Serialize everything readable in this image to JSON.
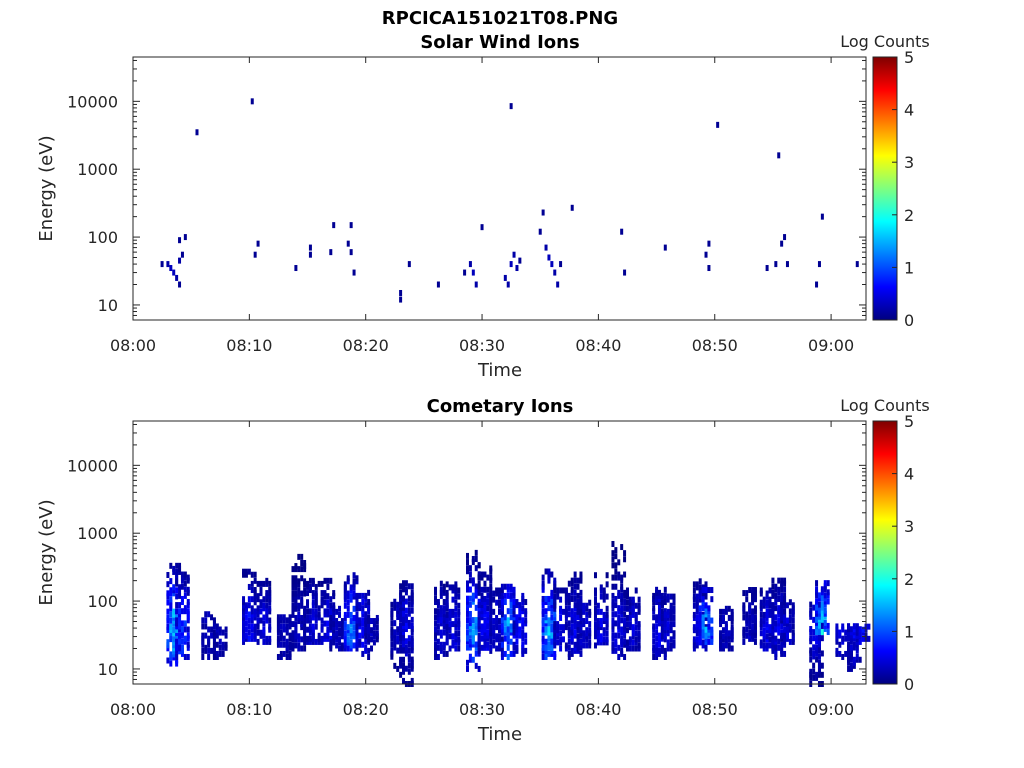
{
  "figure": {
    "title": "RPCICA151021T08.PNG"
  },
  "colors": {
    "colormap": [
      "#00007f",
      "#0000ff",
      "#007fff",
      "#00ffff",
      "#7fff7f",
      "#ffff00",
      "#ff7f00",
      "#ff0000",
      "#7f0000"
    ],
    "axis": "#262626"
  },
  "chart_data": [
    {
      "type": "heatmap",
      "title": "Solar Wind Ions",
      "xlabel": "Time",
      "ylabel": "Energy (eV)",
      "x_ticks": [
        "08:00",
        "08:10",
        "08:20",
        "08:30",
        "08:40",
        "08:50",
        "09:00"
      ],
      "xlim": [
        "08:00",
        "09:03"
      ],
      "y_scale": "log",
      "y_ticks": [
        "10",
        "100",
        "1000",
        "10000"
      ],
      "ylim": [
        6,
        45000
      ],
      "colorbar": {
        "label": "Log Counts",
        "range": [
          0,
          5
        ],
        "ticks": [
          "0",
          "1",
          "2",
          "3",
          "4",
          "5"
        ]
      },
      "points": [
        [
          "08:02:30",
          40,
          0.1
        ],
        [
          "08:03:00",
          40,
          0.2
        ],
        [
          "08:03:15",
          35,
          0.3
        ],
        [
          "08:03:30",
          30,
          0.3
        ],
        [
          "08:03:45",
          25,
          0.2
        ],
        [
          "08:04:00",
          20,
          0.1
        ],
        [
          "08:04:00",
          45,
          0.2
        ],
        [
          "08:04:15",
          55,
          0.1
        ],
        [
          "08:04:00",
          90,
          0.1
        ],
        [
          "08:04:30",
          100,
          0.1
        ],
        [
          "08:05:30",
          3500,
          0.1
        ],
        [
          "08:10:15",
          10000,
          0.1
        ],
        [
          "08:10:45",
          80,
          0.1
        ],
        [
          "08:10:30",
          55,
          0.1
        ],
        [
          "08:14:00",
          35,
          0.1
        ],
        [
          "08:15:15",
          70,
          0.1
        ],
        [
          "08:15:15",
          55,
          0.1
        ],
        [
          "08:17:00",
          60,
          0.1
        ],
        [
          "08:17:15",
          150,
          0.1
        ],
        [
          "08:18:30",
          80,
          0.1
        ],
        [
          "08:18:45",
          60,
          0.1
        ],
        [
          "08:18:45",
          150,
          0.1
        ],
        [
          "08:19:00",
          30,
          0.1
        ],
        [
          "08:23:00",
          15,
          0.1
        ],
        [
          "08:23:00",
          12,
          0.1
        ],
        [
          "08:23:45",
          40,
          0.1
        ],
        [
          "08:26:15",
          20,
          0.1
        ],
        [
          "08:28:30",
          30,
          0.1
        ],
        [
          "08:29:00",
          40,
          0.2
        ],
        [
          "08:29:15",
          30,
          0.3
        ],
        [
          "08:29:30",
          20,
          0.2
        ],
        [
          "08:30:00",
          140,
          0.1
        ],
        [
          "08:32:00",
          25,
          0.2
        ],
        [
          "08:32:15",
          20,
          0.2
        ],
        [
          "08:32:30",
          40,
          0.3
        ],
        [
          "08:32:45",
          55,
          0.2
        ],
        [
          "08:33:00",
          35,
          0.2
        ],
        [
          "08:33:15",
          45,
          0.1
        ],
        [
          "08:32:30",
          8500,
          0.1
        ],
        [
          "08:35:00",
          120,
          0.1
        ],
        [
          "08:35:15",
          230,
          0.1
        ],
        [
          "08:35:30",
          70,
          0.2
        ],
        [
          "08:35:45",
          50,
          0.3
        ],
        [
          "08:36:00",
          40,
          0.3
        ],
        [
          "08:36:15",
          30,
          0.2
        ],
        [
          "08:36:30",
          20,
          0.2
        ],
        [
          "08:36:45",
          40,
          0.1
        ],
        [
          "08:37:45",
          270,
          0.1
        ],
        [
          "08:42:00",
          120,
          0.1
        ],
        [
          "08:42:15",
          30,
          0.1
        ],
        [
          "08:45:45",
          70,
          0.1
        ],
        [
          "08:49:15",
          55,
          0.1
        ],
        [
          "08:49:30",
          35,
          0.1
        ],
        [
          "08:49:30",
          80,
          0.1
        ],
        [
          "08:50:15",
          4500,
          0.1
        ],
        [
          "08:54:30",
          35,
          0.1
        ],
        [
          "08:55:15",
          40,
          0.1
        ],
        [
          "08:55:30",
          1600,
          0.1
        ],
        [
          "08:55:45",
          80,
          0.1
        ],
        [
          "08:56:00",
          100,
          0.1
        ],
        [
          "08:56:15",
          40,
          0.1
        ],
        [
          "08:58:45",
          20,
          0.1
        ],
        [
          "08:59:00",
          40,
          0.1
        ],
        [
          "08:59:15",
          200,
          0.1
        ],
        [
          "09:02:15",
          40,
          0.1
        ]
      ]
    },
    {
      "type": "heatmap",
      "title": "Cometary Ions",
      "xlabel": "Time",
      "ylabel": "Energy (eV)",
      "x_ticks": [
        "08:00",
        "08:10",
        "08:20",
        "08:30",
        "08:40",
        "08:50",
        "09:00"
      ],
      "xlim": [
        "08:00",
        "09:03"
      ],
      "y_scale": "log",
      "y_ticks": [
        "10",
        "100",
        "1000",
        "10000"
      ],
      "ylim": [
        6,
        45000
      ],
      "colorbar": {
        "label": "Log Counts",
        "range": [
          0,
          5
        ],
        "ticks": [
          "0",
          "1",
          "2",
          "3",
          "4",
          "5"
        ]
      },
      "bursts": [
        [
          "08:03:30",
          12,
          350,
          1.4
        ],
        [
          "08:04:15",
          15,
          250,
          0.9
        ],
        [
          "08:06:30",
          15,
          70,
          0.3
        ],
        [
          "08:07:30",
          15,
          45,
          0.3
        ],
        [
          "08:10:00",
          25,
          300,
          0.6
        ],
        [
          "08:11:15",
          25,
          200,
          0.5
        ],
        [
          "08:13:00",
          15,
          60,
          0.3
        ],
        [
          "08:14:15",
          20,
          550,
          0.3
        ],
        [
          "08:15:30",
          25,
          220,
          0.4
        ],
        [
          "08:16:45",
          25,
          220,
          0.5
        ],
        [
          "08:17:30",
          20,
          80,
          0.3
        ],
        [
          "08:18:45",
          20,
          250,
          1.1
        ],
        [
          "08:19:45",
          15,
          150,
          0.6
        ],
        [
          "08:20:30",
          20,
          60,
          0.3
        ],
        [
          "08:22:45",
          10,
          100,
          0.3
        ],
        [
          "08:23:30",
          6,
          200,
          0.5
        ],
        [
          "08:26:30",
          15,
          200,
          0.4
        ],
        [
          "08:27:30",
          20,
          180,
          0.5
        ],
        [
          "08:29:15",
          10,
          550,
          1.3
        ],
        [
          "08:30:15",
          15,
          350,
          0.6
        ],
        [
          "08:31:15",
          20,
          150,
          0.4
        ],
        [
          "08:32:15",
          15,
          200,
          1.3
        ],
        [
          "08:33:15",
          15,
          120,
          0.6
        ],
        [
          "08:35:45",
          15,
          300,
          1.4
        ],
        [
          "08:36:45",
          20,
          150,
          0.5
        ],
        [
          "08:38:00",
          15,
          250,
          0.5
        ],
        [
          "08:38:45",
          20,
          100,
          0.4
        ],
        [
          "08:40:15",
          20,
          250,
          0.5
        ],
        [
          "08:41:45",
          15,
          700,
          0.5
        ],
        [
          "08:43:00",
          20,
          150,
          0.4
        ],
        [
          "08:45:15",
          15,
          200,
          0.5
        ],
        [
          "08:46:00",
          20,
          120,
          0.4
        ],
        [
          "08:48:45",
          20,
          200,
          0.5
        ],
        [
          "08:49:15",
          25,
          150,
          1.2
        ],
        [
          "08:51:00",
          20,
          80,
          0.3
        ],
        [
          "08:53:00",
          25,
          150,
          0.3
        ],
        [
          "08:54:30",
          20,
          150,
          0.5
        ],
        [
          "08:55:30",
          15,
          220,
          0.5
        ],
        [
          "08:56:15",
          25,
          100,
          0.4
        ],
        [
          "08:58:45",
          6,
          90,
          0.5
        ],
        [
          "08:59:15",
          35,
          200,
          1.5
        ],
        [
          "09:01:00",
          15,
          45,
          0.5
        ],
        [
          "09:02:00",
          10,
          45,
          0.5
        ],
        [
          "09:02:45",
          25,
          45,
          0.6
        ]
      ]
    }
  ]
}
